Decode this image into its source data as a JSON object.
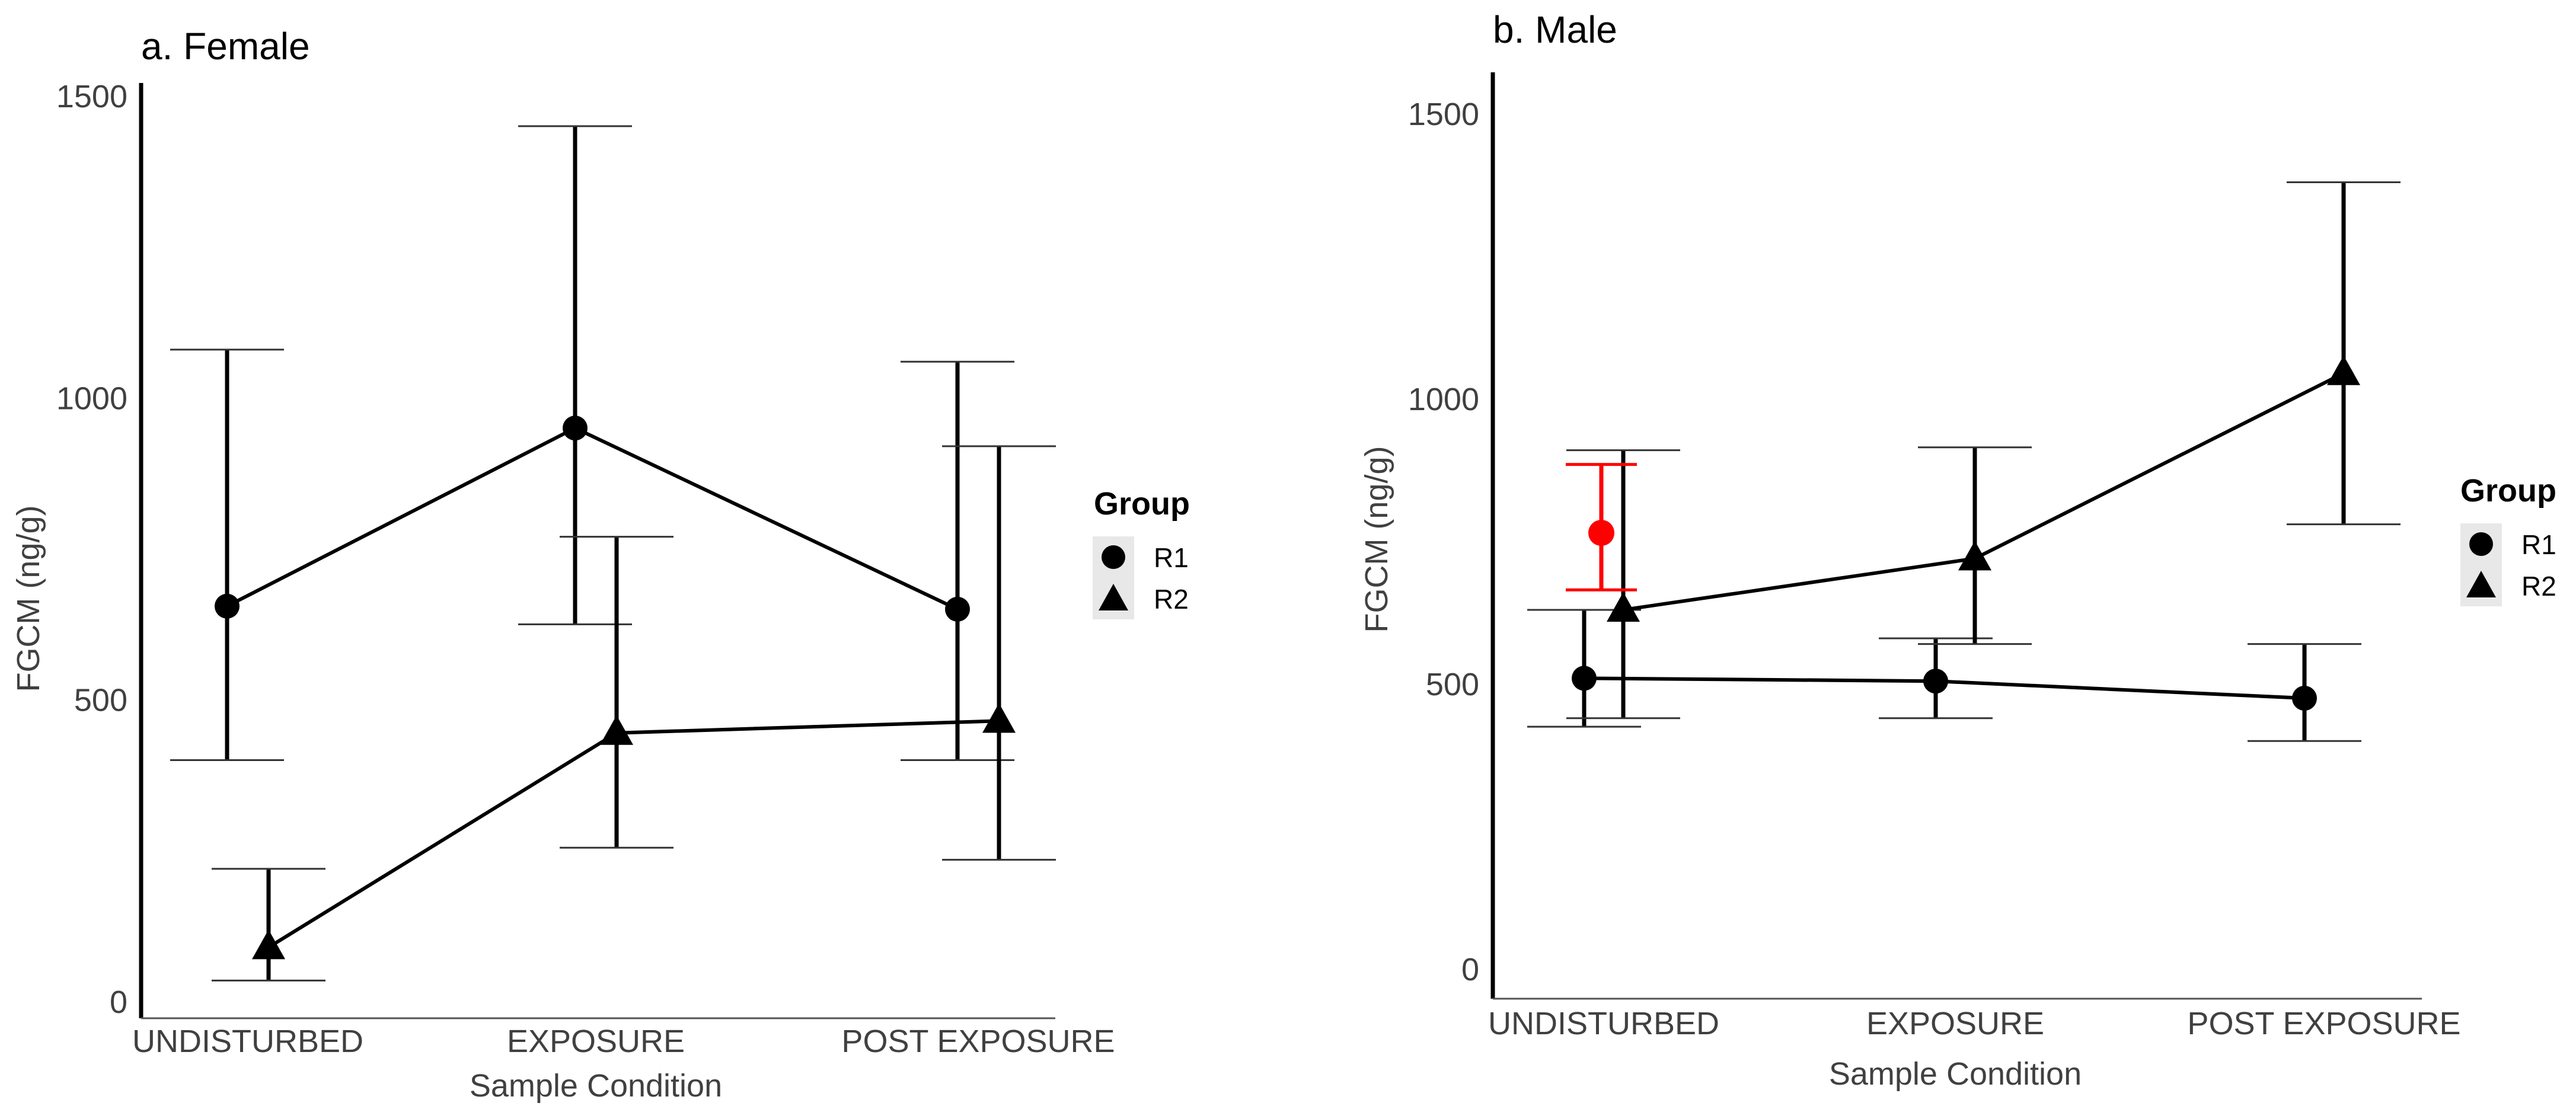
{
  "legend": {
    "title": "Group",
    "items": [
      {
        "label": "R1",
        "shape": "circle"
      },
      {
        "label": "R2",
        "shape": "triangle"
      }
    ]
  },
  "colors": {
    "main": "#000000",
    "highlight": "#ff0000",
    "axis_text": "#404040"
  },
  "chart_data": [
    {
      "type": "line",
      "title": "a. Female",
      "xlabel": "Sample Condition",
      "ylabel": "FGCM (ng/g)",
      "categories": [
        "UNDISTURBED",
        "EXPOSURE",
        "POST EXPOSURE"
      ],
      "y_ticks": [
        0,
        500,
        1000,
        1500
      ],
      "ylim": [
        0,
        1500
      ],
      "series": [
        {
          "name": "R1",
          "marker": "circle",
          "values": [
            655,
            950,
            650
          ],
          "lower": [
            400,
            625,
            400
          ],
          "upper": [
            1080,
            1450,
            1060
          ]
        },
        {
          "name": "R2",
          "marker": "triangle",
          "values": [
            90,
            445,
            465
          ],
          "lower": [
            35,
            255,
            235
          ],
          "upper": [
            220,
            770,
            920
          ]
        }
      ],
      "legend_position": "right",
      "grid": false
    },
    {
      "type": "line",
      "title": "b. Male",
      "xlabel": "Sample Condition",
      "ylabel": "FGCM (ng/g)",
      "categories": [
        "UNDISTURBED",
        "EXPOSURE",
        "POST EXPOSURE"
      ],
      "y_ticks": [
        0,
        500,
        1000,
        1500
      ],
      "ylim": [
        0,
        1500
      ],
      "series": [
        {
          "name": "R1",
          "marker": "circle",
          "values": [
            510,
            505,
            475
          ],
          "lower": [
            425,
            440,
            400
          ],
          "upper": [
            630,
            580,
            570
          ]
        },
        {
          "name": "R2",
          "marker": "triangle",
          "values": [
            630,
            720,
            1045
          ],
          "lower": [
            440,
            570,
            780
          ],
          "upper": [
            910,
            915,
            1380
          ]
        }
      ],
      "highlight_points": [
        {
          "category": "UNDISTURBED",
          "value": 765,
          "lower": 665,
          "upper": 885,
          "color": "#ff0000"
        }
      ],
      "legend_position": "right",
      "grid": false
    }
  ]
}
